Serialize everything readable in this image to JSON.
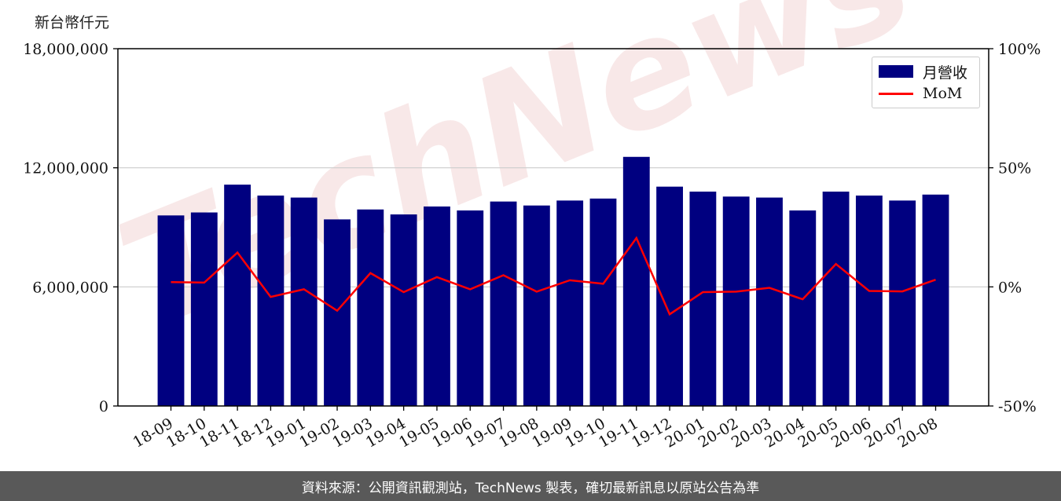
{
  "unit_label": "新台幣仟元",
  "footer_text": "資料來源：公開資訊觀測站，TechNews 製表，確切最新訊息以原站公告為準",
  "legend": {
    "bar_label": "月營收",
    "line_label": "MoM"
  },
  "colors": {
    "bar": "#000080",
    "line": "#ff0000",
    "grid": "#cccccc",
    "footer_bg": "#595959"
  },
  "chart_data": {
    "type": "bar",
    "categories": [
      "18-09",
      "18-10",
      "18-11",
      "18-12",
      "19-01",
      "19-02",
      "19-03",
      "19-04",
      "19-05",
      "19-06",
      "19-07",
      "19-08",
      "19-09",
      "19-10",
      "19-11",
      "19-12",
      "20-01",
      "20-02",
      "20-03",
      "20-04",
      "20-05",
      "20-06",
      "20-07",
      "20-08"
    ],
    "series": [
      {
        "name": "月營收",
        "type": "bar",
        "axis": "left",
        "values": [
          9600000,
          9750000,
          11150000,
          10600000,
          10500000,
          9400000,
          9900000,
          9650000,
          10050000,
          9850000,
          10300000,
          10100000,
          10350000,
          10450000,
          12550000,
          11050000,
          10800000,
          10550000,
          10500000,
          9850000,
          10800000,
          10600000,
          10350000,
          10650000
        ]
      },
      {
        "name": "MoM",
        "type": "line",
        "axis": "right",
        "values": [
          2.0,
          1.8,
          14.4,
          -4.2,
          -1.0,
          -10.0,
          5.8,
          -2.2,
          4.1,
          -1.0,
          4.9,
          -2.0,
          2.8,
          1.3,
          20.5,
          -11.5,
          -2.2,
          -2.0,
          -0.4,
          -5.2,
          9.6,
          -1.7,
          -1.9,
          3.0
        ]
      }
    ],
    "y_left": {
      "min": 0,
      "max": 18000000,
      "ticks": [
        0,
        6000000,
        12000000,
        18000000
      ],
      "tick_labels": [
        "0",
        "6,000,000",
        "12,000,000",
        "18,000,000"
      ]
    },
    "y_right": {
      "min": -50,
      "max": 100,
      "ticks": [
        -50,
        0,
        50,
        100
      ],
      "tick_labels": [
        "-50%",
        "0%",
        "50%",
        "100%"
      ]
    },
    "grid": true,
    "legend_position": "top-right"
  }
}
